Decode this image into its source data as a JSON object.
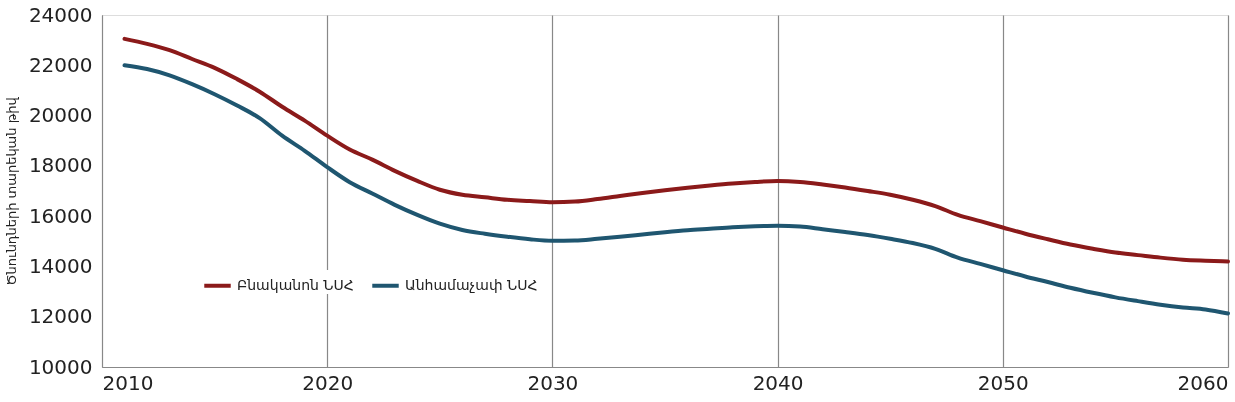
{
  "chart_data": {
    "type": "line",
    "ylabel": "Ծնունդների տարեկան թիվ",
    "x": [
      2011,
      2012,
      2013,
      2014,
      2015,
      2016,
      2017,
      2018,
      2019,
      2020,
      2021,
      2022,
      2023,
      2024,
      2025,
      2026,
      2027,
      2028,
      2029,
      2030,
      2031,
      2032,
      2033,
      2034,
      2035,
      2036,
      2037,
      2038,
      2039,
      2040,
      2041,
      2042,
      2043,
      2044,
      2045,
      2046,
      2047,
      2048,
      2049,
      2050,
      2051,
      2052,
      2053,
      2054,
      2055,
      2056,
      2057,
      2058,
      2059,
      2060
    ],
    "series": [
      {
        "name": "Բնականոն ՆՍՀ",
        "color": "#8b1a1a",
        "values": [
          23050,
          22850,
          22600,
          22250,
          21900,
          21450,
          20950,
          20350,
          19800,
          19200,
          18650,
          18250,
          17800,
          17400,
          17050,
          16850,
          16750,
          16650,
          16600,
          16550,
          16580,
          16680,
          16800,
          16920,
          17030,
          17130,
          17220,
          17300,
          17360,
          17400,
          17360,
          17260,
          17140,
          17000,
          16850,
          16650,
          16400,
          16050,
          15800,
          15550,
          15300,
          15080,
          14870,
          14700,
          14550,
          14450,
          14350,
          14270,
          14230,
          14200
        ]
      },
      {
        "name": "Անհամաչափ ՆՍՀ",
        "color": "#1f5670",
        "values": [
          22000,
          21850,
          21600,
          21250,
          20850,
          20400,
          19900,
          19200,
          18600,
          17950,
          17350,
          16900,
          16450,
          16050,
          15700,
          15450,
          15300,
          15180,
          15080,
          15020,
          15030,
          15100,
          15180,
          15270,
          15360,
          15440,
          15500,
          15560,
          15600,
          15620,
          15590,
          15480,
          15370,
          15250,
          15100,
          14930,
          14700,
          14350,
          14100,
          13850,
          13600,
          13380,
          13150,
          12950,
          12770,
          12620,
          12480,
          12370,
          12290,
          12130
        ]
      }
    ],
    "xlim": [
      2010,
      2060
    ],
    "xticks": [
      2010,
      2020,
      2030,
      2040,
      2050,
      2060
    ],
    "ylim": [
      10000,
      24000
    ],
    "yticks": [
      10000,
      12000,
      14000,
      16000,
      18000,
      20000,
      22000,
      24000
    ],
    "grid": "x",
    "legend": "bottom left",
    "marker": "none",
    "line_style": "solid"
  }
}
